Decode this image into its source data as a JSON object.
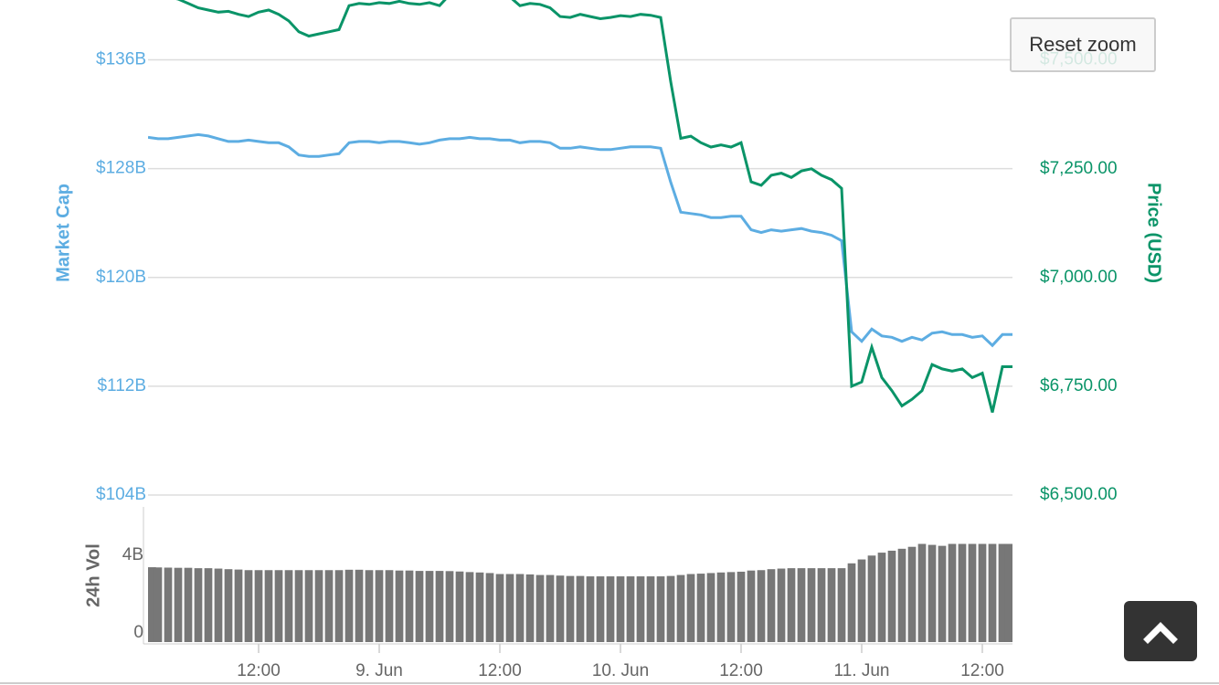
{
  "chart_data": [
    {
      "type": "line",
      "y_label": "Market Cap",
      "y2_label": "Price (USD)",
      "x": [
        "8 Jun 01:00",
        "8 Jun 02:00",
        "8 Jun 03:00",
        "8 Jun 04:00",
        "8 Jun 05:00",
        "8 Jun 06:00",
        "8 Jun 07:00",
        "8 Jun 08:00",
        "8 Jun 09:00",
        "8 Jun 10:00",
        "8 Jun 11:00",
        "8 Jun 12:00",
        "8 Jun 13:00",
        "8 Jun 14:00",
        "8 Jun 15:00",
        "8 Jun 16:00",
        "8 Jun 17:00",
        "8 Jun 18:00",
        "8 Jun 19:00",
        "8 Jun 20:00",
        "8 Jun 21:00",
        "8 Jun 22:00",
        "8 Jun 23:00",
        "9 Jun 00:00",
        "9 Jun 01:00",
        "9 Jun 02:00",
        "9 Jun 03:00",
        "9 Jun 04:00",
        "9 Jun 05:00",
        "9 Jun 06:00",
        "9 Jun 07:00",
        "9 Jun 08:00",
        "9 Jun 09:00",
        "9 Jun 10:00",
        "9 Jun 11:00",
        "9 Jun 12:00",
        "9 Jun 13:00",
        "9 Jun 14:00",
        "9 Jun 15:00",
        "9 Jun 16:00",
        "9 Jun 17:00",
        "9 Jun 18:00",
        "9 Jun 19:00",
        "9 Jun 20:00",
        "9 Jun 21:00",
        "9 Jun 22:00",
        "9 Jun 23:00",
        "10 Jun 00:00",
        "10 Jun 01:00",
        "10 Jun 02:00",
        "10 Jun 03:00",
        "10 Jun 04:00",
        "10 Jun 05:00",
        "10 Jun 06:00",
        "10 Jun 07:00",
        "10 Jun 08:00",
        "10 Jun 09:00",
        "10 Jun 10:00",
        "10 Jun 11:00",
        "10 Jun 12:00",
        "10 Jun 13:00",
        "10 Jun 14:00",
        "10 Jun 15:00",
        "10 Jun 16:00",
        "10 Jun 17:00",
        "10 Jun 18:00",
        "10 Jun 19:00",
        "10 Jun 20:00",
        "10 Jun 21:00",
        "10 Jun 22:00",
        "10 Jun 23:00",
        "11 Jun 00:00",
        "11 Jun 01:00",
        "11 Jun 02:00",
        "11 Jun 03:00",
        "11 Jun 04:00",
        "11 Jun 05:00",
        "11 Jun 06:00",
        "11 Jun 07:00",
        "11 Jun 08:00",
        "11 Jun 09:00",
        "11 Jun 10:00",
        "11 Jun 11:00",
        "11 Jun 12:00",
        "11 Jun 13:00",
        "11 Jun 14:00",
        "11 Jun 15:00"
      ],
      "xlim": [
        "8 Jun 01:00",
        "11 Jun 15:00"
      ],
      "series": [
        {
          "name": "Market Cap",
          "color": "#5dade2",
          "axis": "y",
          "values": [
            130.3,
            130.2,
            130.2,
            130.3,
            130.4,
            130.5,
            130.4,
            130.2,
            130.0,
            130.0,
            130.1,
            130.0,
            129.9,
            129.9,
            129.6,
            129.0,
            128.9,
            128.9,
            129.0,
            129.1,
            129.9,
            130.0,
            130.0,
            129.9,
            130.0,
            130.0,
            129.9,
            129.8,
            129.9,
            130.1,
            130.2,
            130.2,
            130.3,
            130.2,
            130.2,
            130.1,
            130.1,
            129.9,
            130.0,
            130.0,
            129.9,
            129.5,
            129.5,
            129.6,
            129.5,
            129.4,
            129.4,
            129.5,
            129.6,
            129.6,
            129.6,
            129.5,
            127.0,
            124.8,
            124.7,
            124.6,
            124.4,
            124.4,
            124.5,
            124.5,
            123.5,
            123.3,
            123.5,
            123.4,
            123.5,
            123.6,
            123.4,
            123.3,
            123.1,
            122.7,
            116.0,
            115.3,
            116.2,
            115.7,
            115.6,
            115.3,
            115.6,
            115.4,
            115.9,
            116.0,
            115.8,
            115.8,
            115.6,
            115.7,
            115.0,
            115.8,
            115.8
          ]
        },
        {
          "name": "Price (USD)",
          "color": "#0a9468",
          "axis": "y2",
          "values": [
            7650,
            7650,
            7645,
            7640,
            7630,
            7620,
            7615,
            7610,
            7612,
            7605,
            7600,
            7610,
            7615,
            7605,
            7590,
            7565,
            7555,
            7560,
            7565,
            7570,
            7625,
            7630,
            7628,
            7632,
            7630,
            7635,
            7630,
            7628,
            7632,
            7625,
            7650,
            7660,
            7665,
            7660,
            7655,
            7650,
            7645,
            7625,
            7630,
            7628,
            7620,
            7600,
            7598,
            7605,
            7600,
            7595,
            7598,
            7602,
            7600,
            7605,
            7603,
            7598,
            7450,
            7320,
            7325,
            7310,
            7300,
            7305,
            7300,
            7310,
            7220,
            7212,
            7235,
            7240,
            7230,
            7245,
            7250,
            7235,
            7225,
            7205,
            6750,
            6760,
            6840,
            6770,
            6740,
            6705,
            6720,
            6740,
            6800,
            6790,
            6785,
            6790,
            6770,
            6780,
            6690,
            6795,
            6795
          ]
        }
      ],
      "ylim": [
        104,
        140.4
      ],
      "yticks": [
        {
          "value": 104,
          "label": "$104B"
        },
        {
          "value": 112,
          "label": "$112B"
        },
        {
          "value": 120,
          "label": "$120B"
        },
        {
          "value": 128,
          "label": "$128B"
        },
        {
          "value": 136,
          "label": "$136B"
        }
      ],
      "y2lim": [
        6500,
        7638
      ],
      "y2ticks": [
        {
          "value": 6500,
          "label": "$6,500.00"
        },
        {
          "value": 6750,
          "label": "$6,750.00"
        },
        {
          "value": 7000,
          "label": "$7,000.00"
        },
        {
          "value": 7250,
          "label": "$7,250.00"
        },
        {
          "value": 7500,
          "label": "$7,500.00"
        }
      ],
      "grid": true
    },
    {
      "type": "bar",
      "y_label": "24h Vol",
      "color": "#777777",
      "x": [
        "8 Jun 01:00",
        "8 Jun 02:00",
        "8 Jun 03:00",
        "8 Jun 04:00",
        "8 Jun 05:00",
        "8 Jun 06:00",
        "8 Jun 07:00",
        "8 Jun 08:00",
        "8 Jun 09:00",
        "8 Jun 10:00",
        "8 Jun 11:00",
        "8 Jun 12:00",
        "8 Jun 13:00",
        "8 Jun 14:00",
        "8 Jun 15:00",
        "8 Jun 16:00",
        "8 Jun 17:00",
        "8 Jun 18:00",
        "8 Jun 19:00",
        "8 Jun 20:00",
        "8 Jun 21:00",
        "8 Jun 22:00",
        "8 Jun 23:00",
        "9 Jun 00:00",
        "9 Jun 01:00",
        "9 Jun 02:00",
        "9 Jun 03:00",
        "9 Jun 04:00",
        "9 Jun 05:00",
        "9 Jun 06:00",
        "9 Jun 07:00",
        "9 Jun 08:00",
        "9 Jun 09:00",
        "9 Jun 10:00",
        "9 Jun 11:00",
        "9 Jun 12:00",
        "9 Jun 13:00",
        "9 Jun 14:00",
        "9 Jun 15:00",
        "9 Jun 16:00",
        "9 Jun 17:00",
        "9 Jun 18:00",
        "9 Jun 19:00",
        "9 Jun 20:00",
        "9 Jun 21:00",
        "9 Jun 22:00",
        "9 Jun 23:00",
        "10 Jun 00:00",
        "10 Jun 01:00",
        "10 Jun 02:00",
        "10 Jun 03:00",
        "10 Jun 04:00",
        "10 Jun 05:00",
        "10 Jun 06:00",
        "10 Jun 07:00",
        "10 Jun 08:00",
        "10 Jun 09:00",
        "10 Jun 10:00",
        "10 Jun 11:00",
        "10 Jun 12:00",
        "10 Jun 13:00",
        "10 Jun 14:00",
        "10 Jun 15:00",
        "10 Jun 16:00",
        "10 Jun 17:00",
        "10 Jun 18:00",
        "10 Jun 19:00",
        "10 Jun 20:00",
        "10 Jun 21:00",
        "10 Jun 22:00",
        "10 Jun 23:00",
        "11 Jun 00:00",
        "11 Jun 01:00",
        "11 Jun 02:00",
        "11 Jun 03:00",
        "11 Jun 04:00",
        "11 Jun 05:00",
        "11 Jun 06:00",
        "11 Jun 07:00",
        "11 Jun 08:00",
        "11 Jun 09:00",
        "11 Jun 10:00",
        "11 Jun 11:00",
        "11 Jun 12:00",
        "11 Jun 13:00",
        "11 Jun 14:00",
        "11 Jun 15:00"
      ],
      "xlim": [
        "8 Jun 01:00",
        "11 Jun 15:00"
      ],
      "values": [
        3.85,
        3.84,
        3.83,
        3.82,
        3.82,
        3.8,
        3.8,
        3.78,
        3.75,
        3.73,
        3.7,
        3.7,
        3.7,
        3.7,
        3.7,
        3.7,
        3.7,
        3.7,
        3.7,
        3.7,
        3.72,
        3.72,
        3.7,
        3.7,
        3.7,
        3.68,
        3.68,
        3.66,
        3.66,
        3.66,
        3.65,
        3.63,
        3.6,
        3.58,
        3.55,
        3.5,
        3.5,
        3.5,
        3.48,
        3.45,
        3.45,
        3.42,
        3.4,
        3.4,
        3.38,
        3.38,
        3.38,
        3.38,
        3.38,
        3.38,
        3.38,
        3.38,
        3.4,
        3.45,
        3.5,
        3.52,
        3.55,
        3.58,
        3.6,
        3.62,
        3.68,
        3.7,
        3.75,
        3.78,
        3.8,
        3.8,
        3.8,
        3.8,
        3.8,
        3.8,
        4.05,
        4.25,
        4.45,
        4.6,
        4.7,
        4.8,
        4.9,
        5.05,
        5.0,
        4.95,
        5.05,
        5.05,
        5.05,
        5.05,
        5.05,
        5.05,
        5.05
      ],
      "ylim": [
        0,
        7
      ],
      "yticks": [
        0,
        {
          "value": 4,
          "label": "4B"
        }
      ],
      "xticks": [
        {
          "value": "8 Jun 12:00",
          "label": "12:00"
        },
        {
          "value": "9 Jun 00:00",
          "label": "9. Jun"
        },
        {
          "value": "9 Jun 12:00",
          "label": "12:00"
        },
        {
          "value": "10 Jun 00:00",
          "label": "10. Jun"
        },
        {
          "value": "10 Jun 12:00",
          "label": "12:00"
        },
        {
          "value": "11 Jun 00:00",
          "label": "11. Jun"
        },
        {
          "value": "11 Jun 12:00",
          "label": "12:00"
        }
      ]
    }
  ],
  "controls": {
    "reset_zoom": "Reset zoom"
  }
}
